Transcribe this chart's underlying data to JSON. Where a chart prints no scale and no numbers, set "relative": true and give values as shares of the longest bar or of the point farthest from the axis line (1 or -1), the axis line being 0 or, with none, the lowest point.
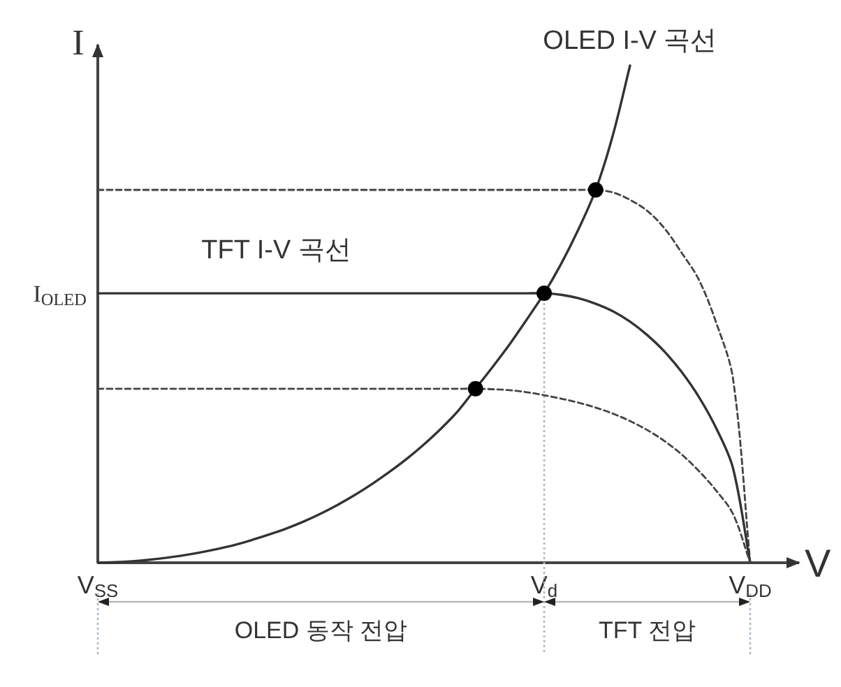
{
  "chart_data": {
    "type": "line",
    "relative": true,
    "xlabel": "V",
    "ylabel": "I",
    "categories": [
      "V$_{SS}$",
      null,
      null,
      null,
      null,
      null,
      null,
      null,
      null,
      null,
      null,
      null,
      null,
      null,
      null,
      null,
      null,
      null,
      null,
      null,
      null,
      null,
      null,
      null,
      null,
      null,
      "V$_{d}$",
      null,
      null,
      null,
      null,
      null,
      null,
      null,
      null,
      null,
      null,
      null,
      "V$_{DD}$"
    ],
    "series": [
      {
        "name": "OLED I-V 곡선",
        "color": "#333333",
        "values": [
          0,
          0.001,
          0.003,
          0.006,
          0.01,
          0.015,
          0.021,
          0.028,
          0.036,
          0.046,
          0.057,
          0.069,
          0.083,
          0.099,
          0.117,
          0.137,
          0.159,
          0.183,
          0.209,
          0.238,
          0.27,
          0.306,
          0.35,
          0.394,
          0.44,
          0.49,
          0.542,
          0.602,
          0.671,
          0.75,
          0.86,
          1,
          null,
          null,
          null,
          null,
          null,
          null,
          null
        ]
      },
      {
        "color": "#444444",
        "line_style": "dashed",
        "values": [
          0.75,
          0.75,
          0.75,
          0.75,
          0.75,
          0.75,
          0.75,
          0.75,
          0.75,
          0.75,
          0.75,
          0.75,
          0.75,
          0.75,
          0.75,
          0.75,
          0.75,
          0.75,
          0.75,
          0.75,
          0.75,
          0.75,
          0.75,
          0.75,
          0.75,
          0.75,
          0.75,
          0.75,
          0.75,
          0.75,
          0.745,
          0.73,
          0.708,
          0.673,
          0.624,
          0.57,
          0.485,
          0.37,
          0
        ]
      },
      {
        "name": "TFT I-V 곡선",
        "color": "#333333",
        "values": [
          0.542,
          0.542,
          0.542,
          0.542,
          0.542,
          0.542,
          0.542,
          0.542,
          0.542,
          0.542,
          0.542,
          0.542,
          0.542,
          0.542,
          0.542,
          0.542,
          0.542,
          0.542,
          0.542,
          0.542,
          0.542,
          0.542,
          0.542,
          0.542,
          0.542,
          0.542,
          0.542,
          0.539,
          0.532,
          0.521,
          0.506,
          0.485,
          0.458,
          0.425,
          0.384,
          0.334,
          0.272,
          0.19,
          0
        ]
      },
      {
        "color": "#444444",
        "line_style": "dashed",
        "values": [
          0.35,
          0.35,
          0.35,
          0.35,
          0.35,
          0.35,
          0.35,
          0.35,
          0.35,
          0.35,
          0.35,
          0.35,
          0.35,
          0.35,
          0.35,
          0.35,
          0.35,
          0.35,
          0.35,
          0.35,
          0.35,
          0.35,
          0.35,
          0.349,
          0.347,
          0.343,
          0.337,
          0.33,
          0.322,
          0.312,
          0.3,
          0.285,
          0.267,
          0.245,
          0.218,
          0.185,
          0.146,
          0.098,
          0
        ]
      },
      {
        "type": "scatter",
        "marker": "circle",
        "color": "#000000",
        "values": [
          null,
          null,
          null,
          null,
          null,
          null,
          null,
          null,
          null,
          null,
          null,
          null,
          null,
          null,
          null,
          null,
          null,
          null,
          null,
          null,
          null,
          null,
          0.35,
          null,
          null,
          null,
          0.542,
          null,
          null,
          0.75,
          null,
          null,
          null,
          null,
          null,
          null,
          null,
          null,
          null
        ]
      }
    ],
    "annotations": [
      {
        "text": "I$_{OLED}$",
        "x": "V$_{SS}$",
        "y": 0.542
      },
      "OLED 동작 전압",
      "TFT 전압"
    ]
  }
}
